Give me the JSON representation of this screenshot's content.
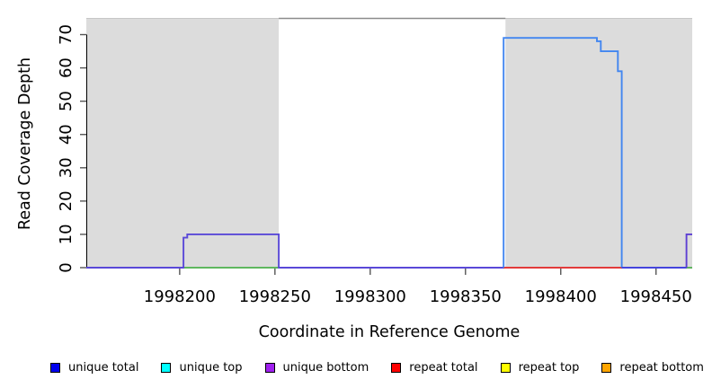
{
  "figure": {
    "xlabel": "Coordinate in Reference Genome",
    "ylabel": "Read Coverage Depth"
  },
  "chart_data": {
    "type": "line",
    "title": "",
    "xlabel": "Coordinate in Reference Genome",
    "ylabel": "Read Coverage Depth",
    "xlim": [
      1998151,
      1998469
    ],
    "ylim": [
      0,
      75
    ],
    "xticks": [
      1998200,
      1998250,
      1998300,
      1998350,
      1998400,
      1998450
    ],
    "yticks": [
      0,
      10,
      20,
      30,
      40,
      50,
      60,
      70
    ],
    "grid": false,
    "legend_position": "bottom",
    "shaded_regions": [
      {
        "name": "left-gray-region",
        "x1": 1998151,
        "x2": 1998252,
        "color": "#dcdcdc"
      },
      {
        "name": "right-gray-region",
        "x1": 1998371,
        "x2": 1998469,
        "color": "#dcdcdc"
      }
    ],
    "box_top_color": "#8c8c8c",
    "axis_color": "#000000",
    "series": [
      {
        "name": "green-zero-segment-left",
        "color": "#5fb75f",
        "points": [
          [
            1998202,
            0
          ],
          [
            1998252,
            0
          ]
        ]
      },
      {
        "name": "unique-overlap-baseline-and-bump",
        "color": "#5a49d8",
        "points": [
          [
            1998151,
            0
          ],
          [
            1998202,
            0
          ],
          [
            1998202,
            9
          ],
          [
            1998204,
            9
          ],
          [
            1998204,
            10
          ],
          [
            1998252,
            10
          ],
          [
            1998252,
            0
          ],
          [
            1998370,
            0
          ]
        ]
      },
      {
        "name": "repeat-total-zero-segment",
        "color": "#e23b3b",
        "points": [
          [
            1998370,
            0
          ],
          [
            1998432,
            0
          ]
        ]
      },
      {
        "name": "unique-total-peak",
        "color": "#4286f0",
        "points": [
          [
            1998370,
            0
          ],
          [
            1998370,
            69
          ],
          [
            1998419,
            69
          ],
          [
            1998419,
            68
          ],
          [
            1998421,
            68
          ],
          [
            1998421,
            65
          ],
          [
            1998430,
            65
          ],
          [
            1998430,
            59
          ],
          [
            1998432,
            59
          ],
          [
            1998432,
            0
          ]
        ]
      },
      {
        "name": "blue-zero-segment-right",
        "color": "#4444dd",
        "points": [
          [
            1998432,
            0
          ],
          [
            1998466,
            0
          ]
        ]
      },
      {
        "name": "green-zero-segment-right",
        "color": "#5fb75f",
        "points": [
          [
            1998466,
            0
          ],
          [
            1998469,
            0
          ]
        ]
      },
      {
        "name": "unique-bottom-edge-spike",
        "color": "#5d3fd3",
        "points": [
          [
            1998466,
            0
          ],
          [
            1998466,
            10
          ],
          [
            1998469,
            10
          ]
        ]
      }
    ],
    "legend": [
      {
        "label": "unique total",
        "color": "#0000ee"
      },
      {
        "label": "unique top",
        "color": "#00ffff"
      },
      {
        "label": "unique bottom",
        "color": "#a020f0"
      },
      {
        "label": "repeat total",
        "color": "#ff0000"
      },
      {
        "label": "repeat top",
        "color": "#ffff00"
      },
      {
        "label": "repeat bottom",
        "color": "#ffa500"
      }
    ]
  }
}
